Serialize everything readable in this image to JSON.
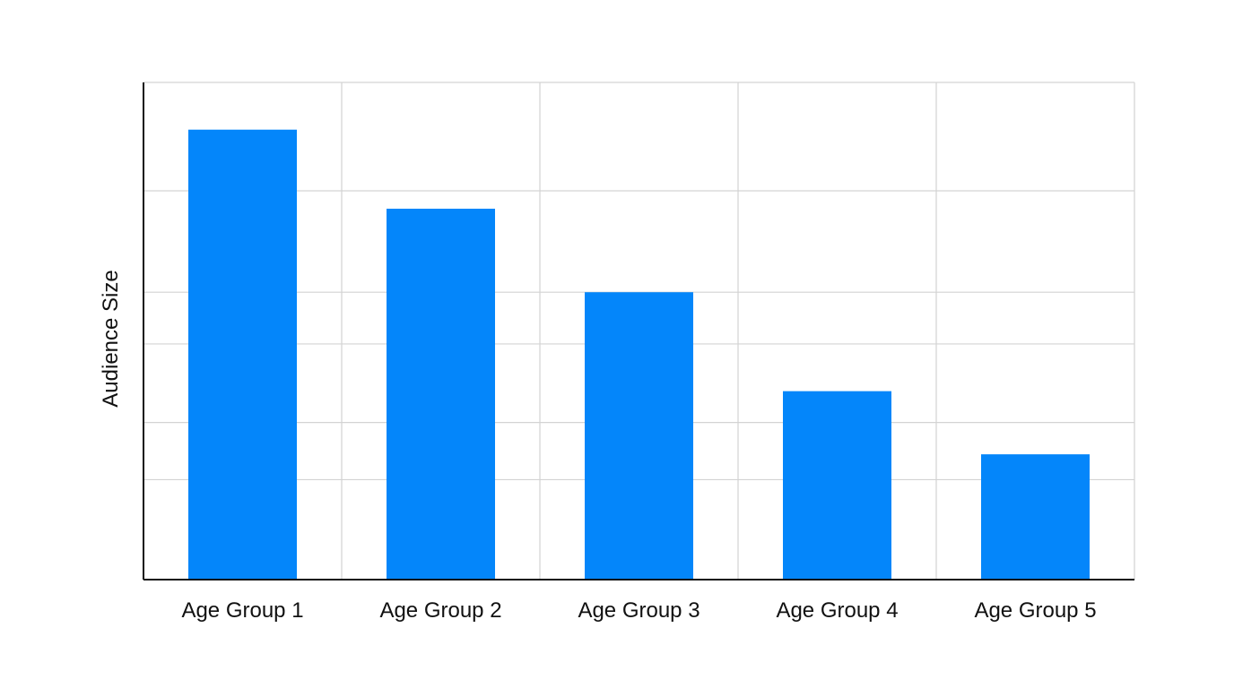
{
  "chart_data": {
    "type": "bar",
    "title": "",
    "xlabel": "",
    "ylabel": "Audience Size",
    "categories": [
      "Age Group 1",
      "Age Group 2",
      "Age Group 3",
      "Age Group 4",
      "Age Group 5"
    ],
    "values": [
      90.5,
      74.6,
      57.8,
      37.9,
      25.2
    ],
    "ylim": [
      0,
      100
    ],
    "y_gridlines": [
      20.1,
      31.6,
      47.4,
      57.8,
      78.2
    ],
    "grid": true,
    "legend": "none",
    "colors": {
      "bar": "#0486FA",
      "grid": "#D3D3D3",
      "axis": "#111111",
      "text": "#111111"
    }
  }
}
